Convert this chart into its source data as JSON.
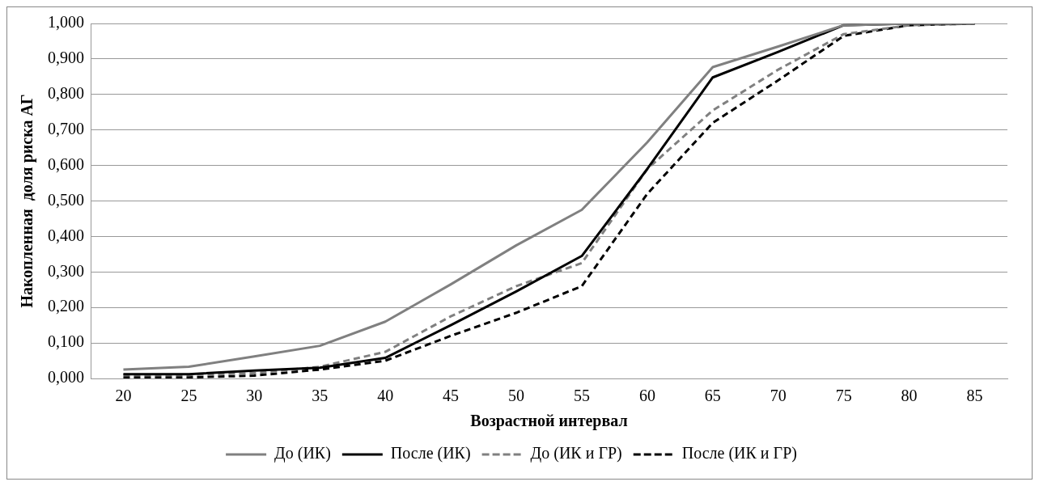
{
  "chart_data": {
    "type": "line",
    "xlabel": "Возрастной интервал",
    "ylabel": "Накопленная  доля риска АГ",
    "categories": [
      "20",
      "25",
      "30",
      "35",
      "40",
      "45",
      "50",
      "55",
      "60",
      "65",
      "70",
      "75",
      "80",
      "85"
    ],
    "series": [
      {
        "name": "До (ИК)",
        "color": "#808080",
        "line_style": "solid",
        "values": [
          0.025,
          0.033,
          0.062,
          0.092,
          0.16,
          0.265,
          0.375,
          0.475,
          0.665,
          0.877,
          0.935,
          0.995,
          1.0,
          1.0
        ]
      },
      {
        "name": "После (ИК)",
        "color": "#000000",
        "line_style": "solid",
        "values": [
          0.012,
          0.012,
          0.022,
          0.03,
          0.058,
          0.15,
          0.245,
          0.345,
          0.59,
          0.848,
          0.92,
          0.995,
          1.0,
          1.0
        ]
      },
      {
        "name": "До (ИК и ГР)",
        "color": "#808080",
        "line_style": "dashed",
        "values": [
          0.01,
          0.01,
          0.015,
          0.033,
          0.075,
          0.175,
          0.26,
          0.325,
          0.59,
          0.755,
          0.87,
          0.97,
          0.995,
          1.0
        ]
      },
      {
        "name": "После (ИК и ГР)",
        "color": "#000000",
        "line_style": "dashed",
        "values": [
          0.003,
          0.003,
          0.008,
          0.025,
          0.05,
          0.12,
          0.185,
          0.26,
          0.52,
          0.72,
          0.84,
          0.965,
          0.995,
          1.0
        ]
      }
    ],
    "ylim": [
      0,
      1
    ],
    "yticks": [
      {
        "value": 0,
        "label": "0,000"
      },
      {
        "value": 0.1,
        "label": "0,100"
      },
      {
        "value": 0.2,
        "label": "0,200"
      },
      {
        "value": 0.3,
        "label": "0,300"
      },
      {
        "value": 0.4,
        "label": "0,400"
      },
      {
        "value": 0.5,
        "label": "0,500"
      },
      {
        "value": 0.6,
        "label": "0,600"
      },
      {
        "value": 0.7,
        "label": "0,700"
      },
      {
        "value": 0.8,
        "label": "0,800"
      },
      {
        "value": 0.9,
        "label": "0,900"
      },
      {
        "value": 1,
        "label": "1,000"
      }
    ],
    "grid": "y",
    "legend": "bottom",
    "marker": "none"
  }
}
